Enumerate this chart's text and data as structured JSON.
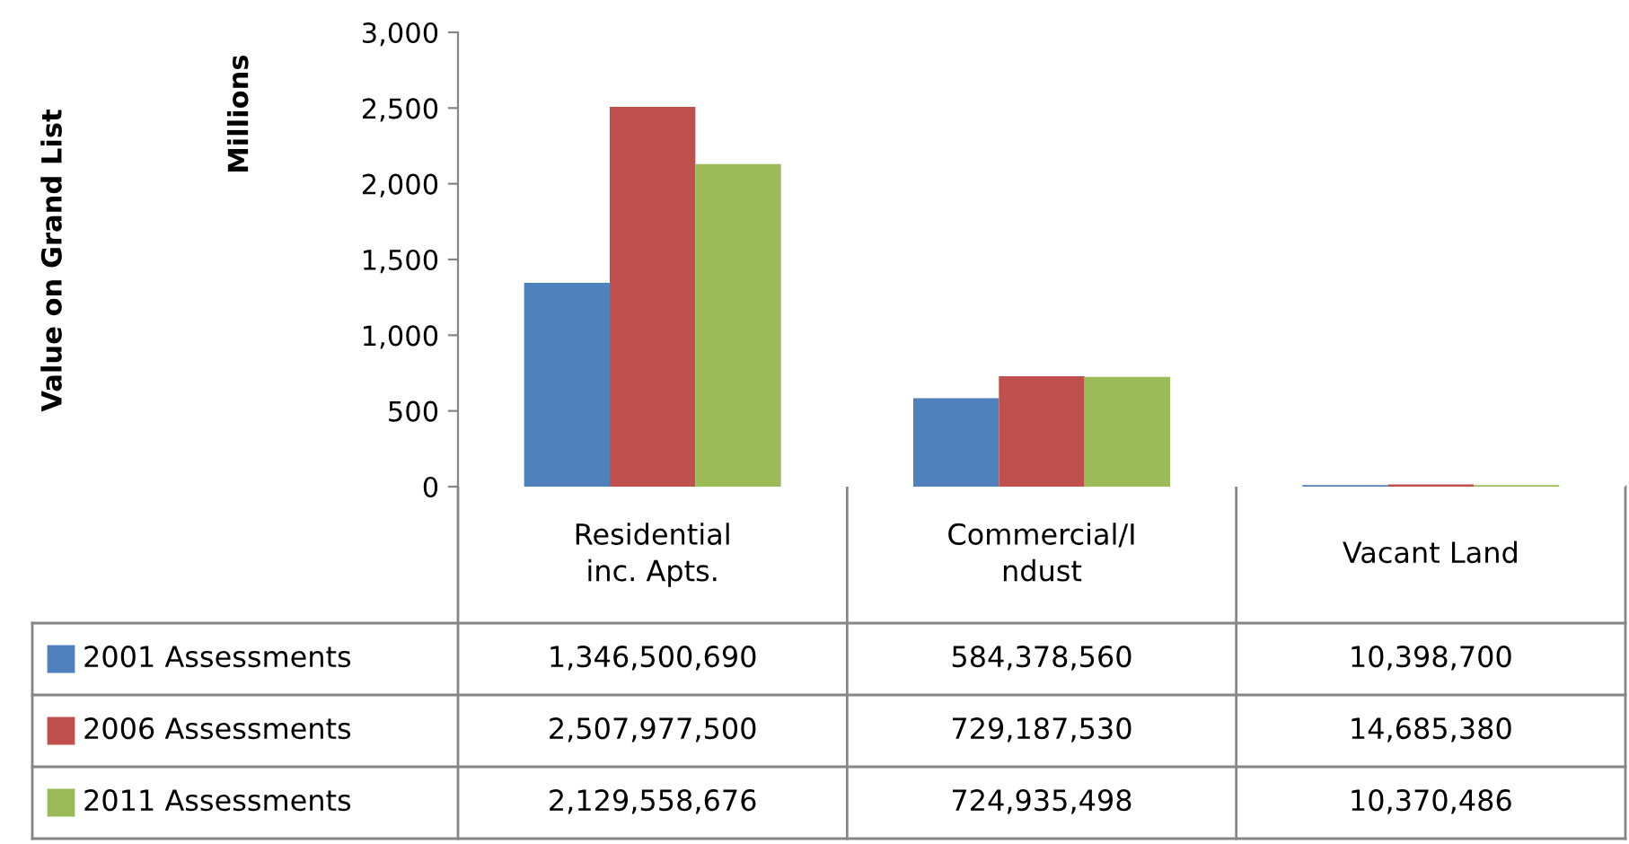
{
  "chart_data": {
    "type": "bar",
    "ylabel": "Millions",
    "annotations": [
      "Value on Grand List",
      "1,346,500,690",
      "584,378,560",
      "10,398,700",
      "2,507,977,500",
      "729,187,530",
      "14,685,380",
      "2,129,558,676",
      "724,935,498",
      "10,370,486"
    ],
    "categories": [
      "Residential\ninc. Apts.",
      "Commercial/I\nndust",
      "Vacant Land"
    ],
    "series": [
      {
        "name": "2001 Assessments",
        "color": "#4f81bd",
        "values": [
          1346.50069,
          584.37856,
          10.3987
        ]
      },
      {
        "name": "2006 Assessments",
        "color": "#c0504d",
        "values": [
          2507.9775,
          729.18753,
          14.68538
        ]
      },
      {
        "name": "2011 Assessments",
        "color": "#9bbb59",
        "values": [
          2129.558676,
          724.935498,
          10.370486
        ]
      }
    ],
    "ylim": [
      0,
      3000
    ],
    "yticks": [
      0,
      500,
      {
        "value": 1000,
        "label": "1,000"
      },
      {
        "value": 1500,
        "label": "1,500"
      },
      {
        "value": 2000,
        "label": "2,000"
      },
      {
        "value": 2500,
        "label": "2,500"
      },
      {
        "value": 3000,
        "label": "3,000"
      }
    ],
    "grid": false,
    "legend": "bottom"
  }
}
